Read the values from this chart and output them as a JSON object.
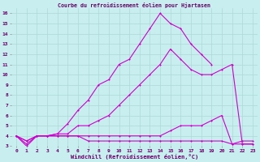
{
  "title": "Courbe du refroidissement éolien pour Hjartasen",
  "xlabel": "Windchill (Refroidissement éolien,°C)",
  "ylabel": "",
  "xlim": [
    -0.5,
    23.5
  ],
  "ylim": [
    3,
    16.5
  ],
  "yticks": [
    3,
    4,
    5,
    6,
    7,
    8,
    9,
    10,
    11,
    12,
    13,
    14,
    15,
    16
  ],
  "xticks": [
    0,
    1,
    2,
    3,
    4,
    5,
    6,
    7,
    8,
    9,
    10,
    11,
    12,
    13,
    14,
    15,
    16,
    17,
    18,
    19,
    20,
    21,
    22,
    23
  ],
  "bg_color": "#c8eef0",
  "grid_color": "#b0d8d8",
  "line_color": "#cc00cc",
  "line1_x": [
    0,
    1,
    2,
    3,
    4,
    5,
    6,
    7,
    8,
    9,
    10,
    11,
    12,
    13,
    14,
    15,
    16,
    17,
    18,
    19
  ],
  "line1_y": [
    4,
    3,
    4,
    4,
    4.2,
    5.2,
    6.5,
    7.5,
    9.0,
    9.5,
    11.0,
    11.5,
    13.0,
    14.5,
    16.0,
    15.0,
    14.5,
    13.0,
    12.0,
    11.0
  ],
  "line2_x": [
    0,
    1,
    2,
    3,
    4,
    5,
    6,
    7,
    8,
    9,
    10,
    11,
    12,
    13,
    14,
    15,
    16,
    17,
    18,
    19,
    20,
    21,
    22,
    23
  ],
  "line2_y": [
    4,
    3.2,
    4,
    4,
    4.2,
    4.2,
    5.0,
    5.0,
    5.5,
    6.0,
    7.0,
    8.0,
    9.0,
    10.0,
    11.0,
    12.5,
    11.5,
    10.5,
    10.0,
    10.0,
    10.5,
    11.0,
    3.2,
    3.2
  ],
  "line3_x": [
    0,
    1,
    2,
    3,
    4,
    5,
    6,
    7,
    8,
    9,
    10,
    11,
    12,
    13,
    14,
    15,
    16,
    17,
    18,
    19,
    20,
    21,
    22,
    23
  ],
  "line3_y": [
    4,
    3.5,
    4,
    4,
    4,
    4,
    4,
    4,
    4,
    4,
    4,
    4,
    4,
    4,
    4,
    4.5,
    5.0,
    5.0,
    5.0,
    5.5,
    6.0,
    3.2,
    3.5,
    3.5
  ],
  "line4_x": [
    0,
    1,
    2,
    3,
    4,
    5,
    6,
    7,
    8,
    9,
    10,
    11,
    12,
    13,
    14,
    15,
    16,
    17,
    18,
    19,
    20,
    21,
    22,
    23
  ],
  "line4_y": [
    4,
    3.5,
    4,
    4,
    4,
    4,
    4,
    3.5,
    3.5,
    3.5,
    3.5,
    3.5,
    3.5,
    3.5,
    3.5,
    3.5,
    3.5,
    3.5,
    3.5,
    3.5,
    3.5,
    3.2,
    3.2,
    3.2
  ]
}
